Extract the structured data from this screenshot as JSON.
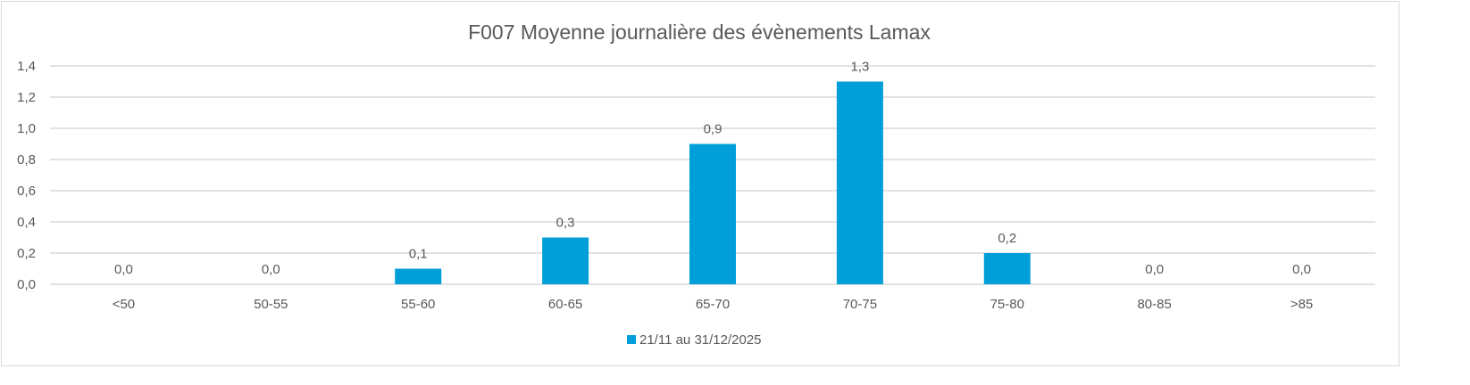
{
  "chart_data": {
    "type": "bar",
    "title": "F007 Moyenne journalière des évènements Lamax",
    "xlabel": "",
    "ylabel": "",
    "categories": [
      "<50",
      "50-55",
      "55-60",
      "60-65",
      "65-70",
      "70-75",
      "75-80",
      "80-85",
      ">85"
    ],
    "series": [
      {
        "name": "21/11 au 31/12/2025",
        "values": [
          0.0,
          0.0,
          0.1,
          0.3,
          0.9,
          1.3,
          0.2,
          0.0,
          0.0
        ],
        "labels": [
          "0,0",
          "0,0",
          "0,1",
          "0,3",
          "0,9",
          "1,3",
          "0,2",
          "0,0",
          "0,0"
        ],
        "color": "#009fd9"
      }
    ],
    "ylim": [
      0,
      1.4
    ],
    "yticks": [
      0,
      0.2,
      0.4,
      0.6,
      0.8,
      1.0,
      1.2,
      1.4
    ],
    "ytick_labels": [
      "0,0",
      "0,2",
      "0,4",
      "0,6",
      "0,8",
      "1,0",
      "1,2",
      "1,4"
    ],
    "grid": true,
    "legend": "bottom"
  }
}
